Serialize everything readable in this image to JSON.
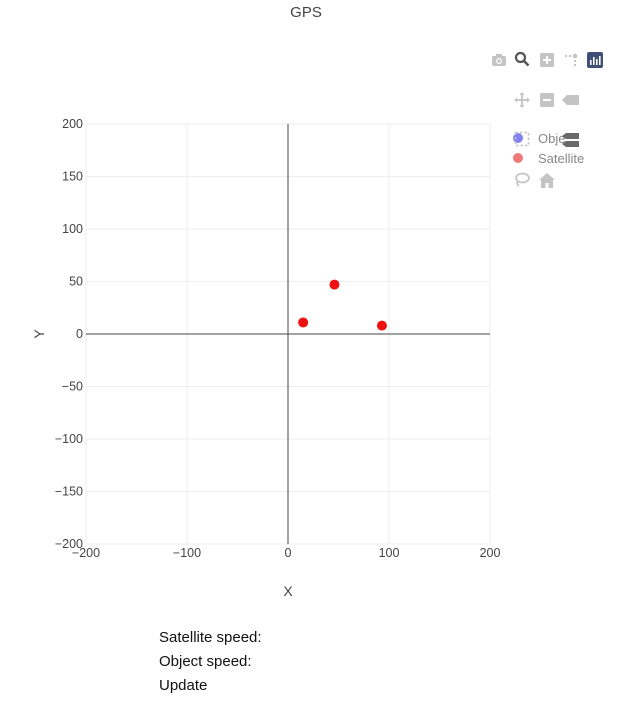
{
  "chart_data": {
    "type": "scatter",
    "title": "GPS",
    "xlabel": "X",
    "ylabel": "Y",
    "xlim": [
      -200,
      200
    ],
    "ylim": [
      -200,
      200
    ],
    "x_ticks": [
      -200,
      -100,
      0,
      100,
      200
    ],
    "y_ticks": [
      -200,
      -150,
      -100,
      -50,
      0,
      50,
      100,
      150,
      200
    ],
    "grid": true,
    "legend_position": "top-right",
    "series": [
      {
        "name": "Object",
        "legend_label": "Obje",
        "color": "#6b6bf0",
        "x": [],
        "y": []
      },
      {
        "name": "Satellite",
        "legend_label": "Satellite",
        "color": "#ee1111",
        "x": [
          15,
          46,
          93
        ],
        "y": [
          11,
          47,
          8
        ]
      }
    ]
  },
  "modebar": {
    "icons": [
      "camera-icon",
      "zoom-icon",
      "zoom-in-icon",
      "spike-icon",
      "plotly-logo-icon",
      "pan-icon",
      "zoom-out-icon",
      "hover-closest-icon",
      "box-select-icon",
      "hover-compare-icon",
      "lasso-icon",
      "home-icon"
    ]
  },
  "controls": {
    "satellite_speed_label": "Satellite speed:",
    "object_speed_label": "Object speed:",
    "update_label": "Update"
  }
}
